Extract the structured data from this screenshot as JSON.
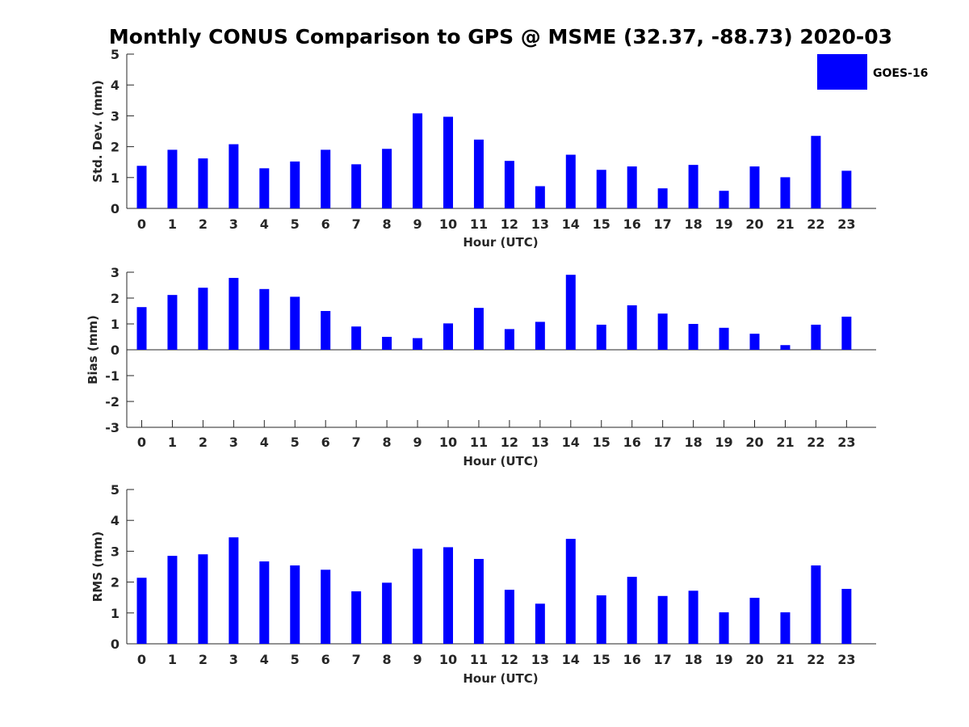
{
  "title": "Monthly CONUS Comparison to GPS @ MSME (32.37, -88.73) 2020-03",
  "legend": {
    "label": "GOES-16",
    "color": "#0000ff"
  },
  "chart_data": [
    {
      "type": "bar",
      "name": "std-dev",
      "ylabel": "Std. Dev. (mm)",
      "xlabel": "Hour (UTC)",
      "ylim": [
        0,
        5
      ],
      "yticks": [
        0,
        1,
        2,
        3,
        4,
        5
      ],
      "categories": [
        "0",
        "1",
        "2",
        "3",
        "4",
        "5",
        "6",
        "7",
        "8",
        "9",
        "10",
        "11",
        "12",
        "13",
        "14",
        "15",
        "16",
        "17",
        "18",
        "19",
        "20",
        "21",
        "22",
        "23"
      ],
      "series": [
        {
          "name": "GOES-16",
          "values": [
            1.38,
            1.9,
            1.62,
            2.08,
            1.3,
            1.52,
            1.9,
            1.43,
            1.93,
            3.08,
            2.97,
            2.23,
            1.54,
            0.72,
            1.74,
            1.25,
            1.36,
            0.65,
            1.41,
            0.57,
            1.36,
            1.01,
            2.35,
            1.22
          ]
        }
      ]
    },
    {
      "type": "bar",
      "name": "bias",
      "ylabel": "Bias (mm)",
      "xlabel": "Hour (UTC)",
      "ylim": [
        -3,
        3
      ],
      "yticks": [
        -3,
        -2,
        -1,
        0,
        1,
        2,
        3
      ],
      "categories": [
        "0",
        "1",
        "2",
        "3",
        "4",
        "5",
        "6",
        "7",
        "8",
        "9",
        "10",
        "11",
        "12",
        "13",
        "14",
        "15",
        "16",
        "17",
        "18",
        "19",
        "20",
        "21",
        "22",
        "23"
      ],
      "series": [
        {
          "name": "GOES-16",
          "values": [
            1.65,
            2.12,
            2.4,
            2.78,
            2.35,
            2.05,
            1.5,
            0.9,
            0.5,
            0.45,
            1.02,
            1.62,
            0.8,
            1.08,
            2.9,
            0.97,
            1.72,
            1.4,
            1.0,
            0.85,
            0.62,
            0.18,
            0.97,
            1.28
          ]
        }
      ]
    },
    {
      "type": "bar",
      "name": "rms",
      "ylabel": "RMS (mm)",
      "xlabel": "Hour (UTC)",
      "ylim": [
        0,
        5
      ],
      "yticks": [
        0,
        1,
        2,
        3,
        4,
        5
      ],
      "categories": [
        "0",
        "1",
        "2",
        "3",
        "4",
        "5",
        "6",
        "7",
        "8",
        "9",
        "10",
        "11",
        "12",
        "13",
        "14",
        "15",
        "16",
        "17",
        "18",
        "19",
        "20",
        "21",
        "22",
        "23"
      ],
      "series": [
        {
          "name": "GOES-16",
          "values": [
            2.14,
            2.85,
            2.9,
            3.45,
            2.67,
            2.54,
            2.4,
            1.7,
            1.98,
            3.08,
            3.13,
            2.75,
            1.75,
            1.3,
            3.4,
            1.57,
            2.17,
            1.55,
            1.72,
            1.02,
            1.49,
            1.02,
            2.54,
            1.78
          ]
        }
      ]
    }
  ]
}
